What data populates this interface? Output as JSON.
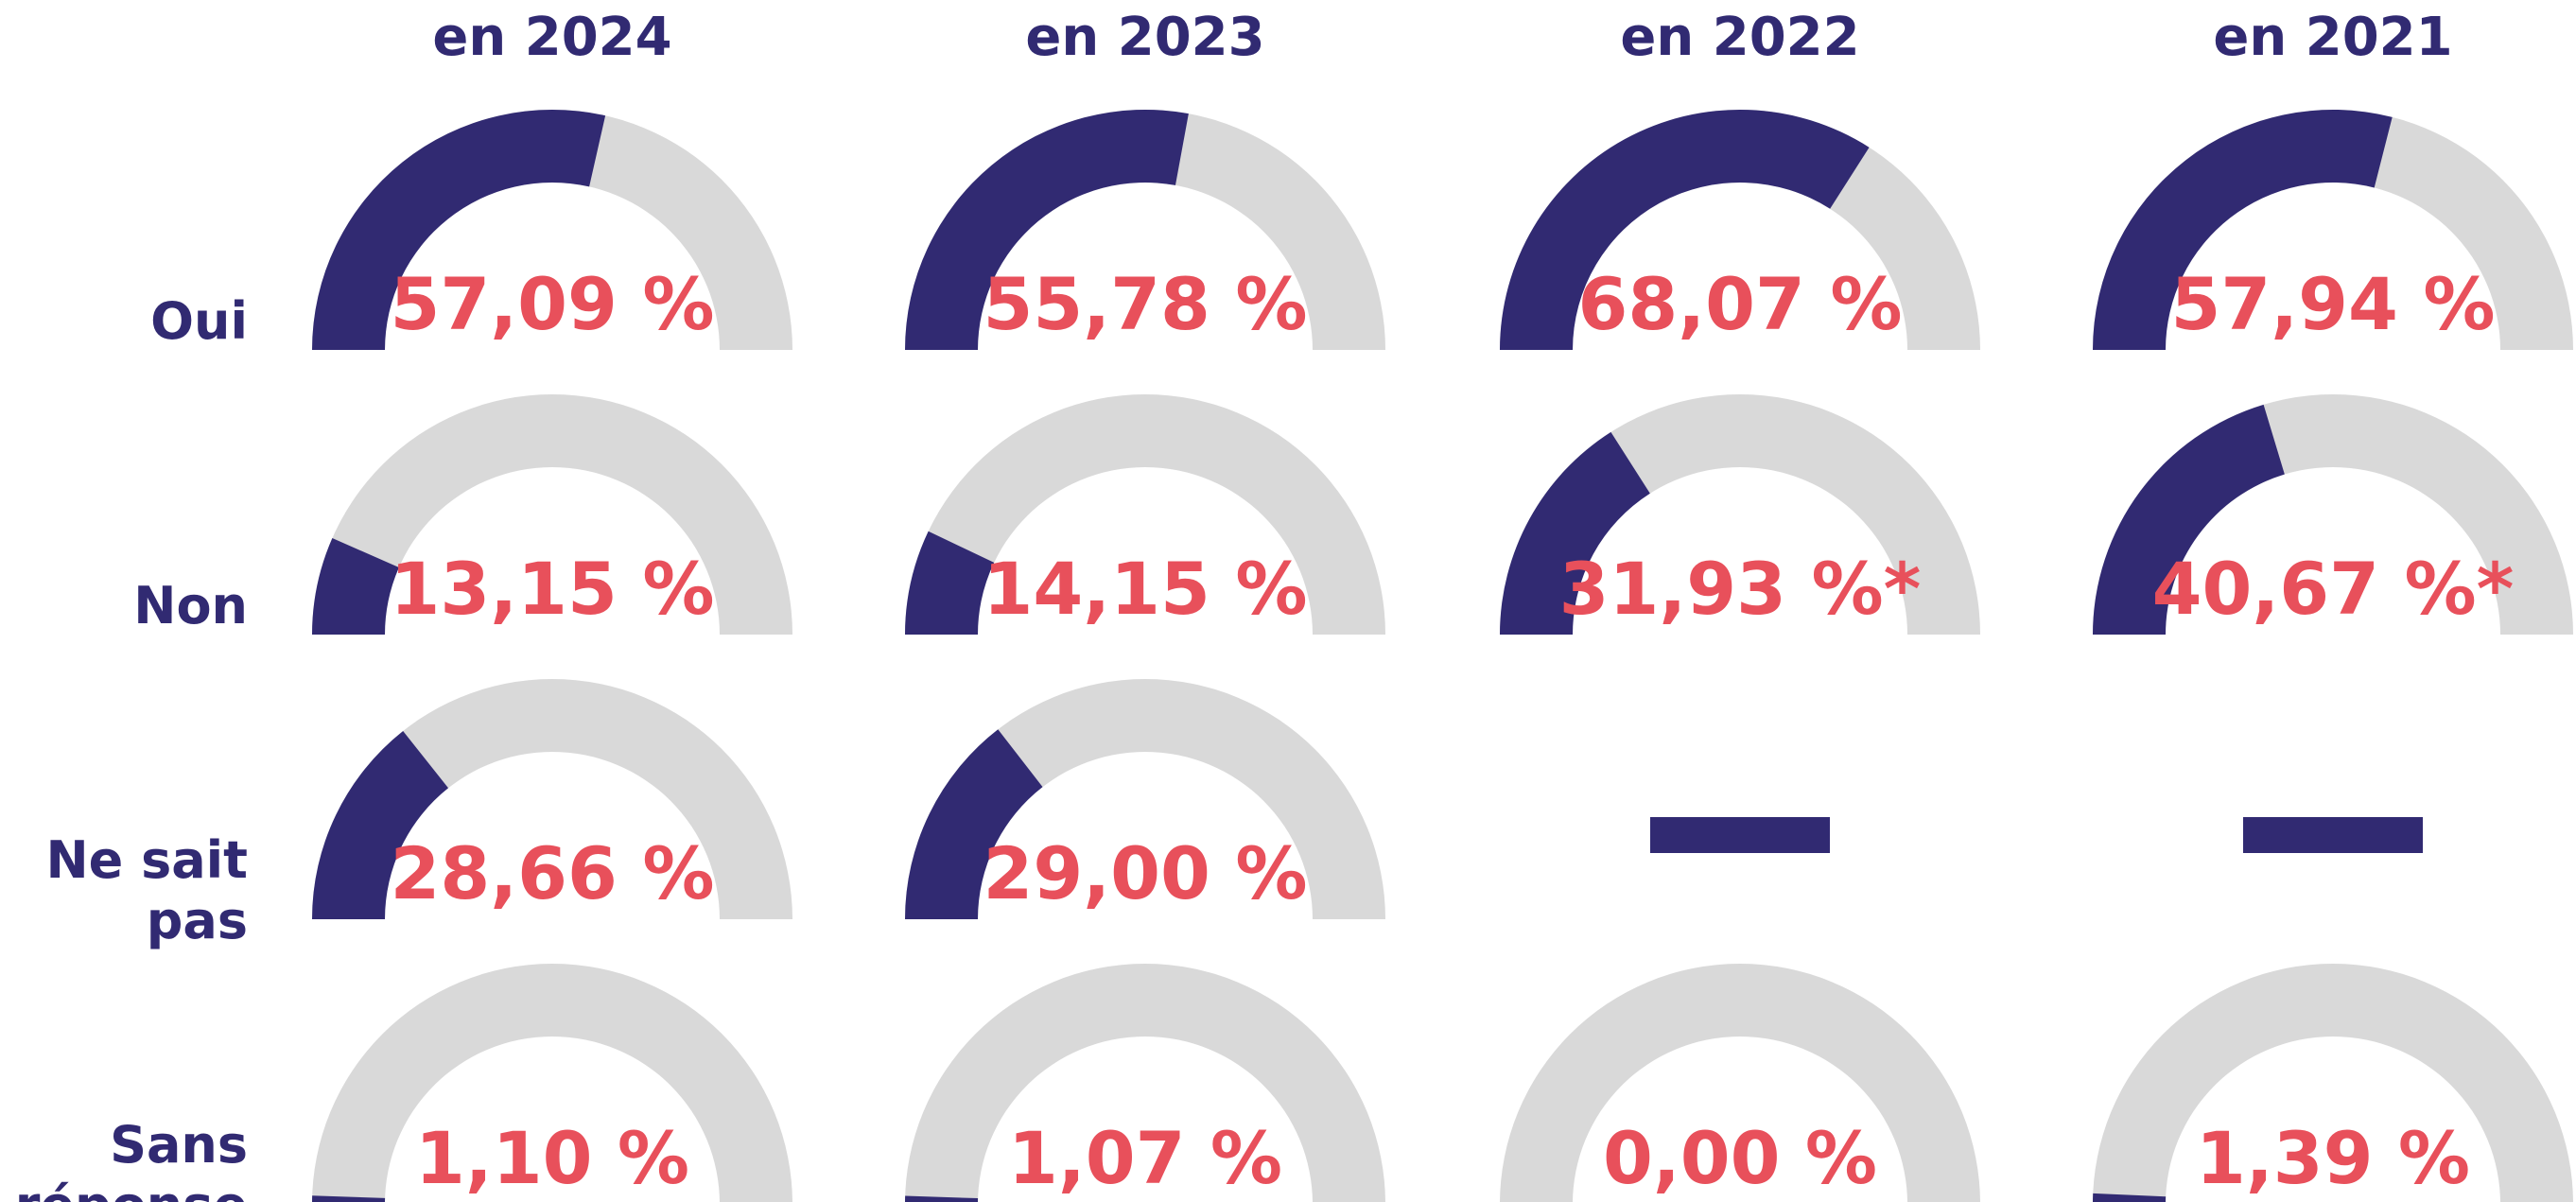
{
  "chart_data": {
    "type": "gauge",
    "categories": [
      "en 2024",
      "en 2023",
      "en 2022",
      "en 2021"
    ],
    "ylim": [
      0,
      100
    ],
    "color": "#312a72",
    "track_color": "#d9d9d9",
    "label_color": "#e8505b",
    "series": [
      {
        "name": "Oui",
        "values": [
          57.09,
          55.78,
          68.07,
          57.94
        ],
        "value_labels": [
          "57,09 %",
          "55,78 %",
          "68,07 %",
          "57,94 %"
        ]
      },
      {
        "name": "Non",
        "values": [
          13.15,
          14.15,
          31.93,
          40.67
        ],
        "value_labels": [
          "13,15 %",
          "14,15 %",
          "31,93 %*",
          "40,67 %*"
        ]
      },
      {
        "name": "Ne sait pas",
        "values": [
          28.66,
          29.0,
          null,
          null
        ],
        "value_labels": [
          "28,66 %",
          "29,00 %",
          null,
          null
        ]
      },
      {
        "name": "Sans réponse",
        "values": [
          1.1,
          1.07,
          0.0,
          1.39
        ],
        "value_labels": [
          "1,10 %",
          "1,07 %",
          "0,00 %",
          "1,39 %"
        ]
      }
    ]
  }
}
